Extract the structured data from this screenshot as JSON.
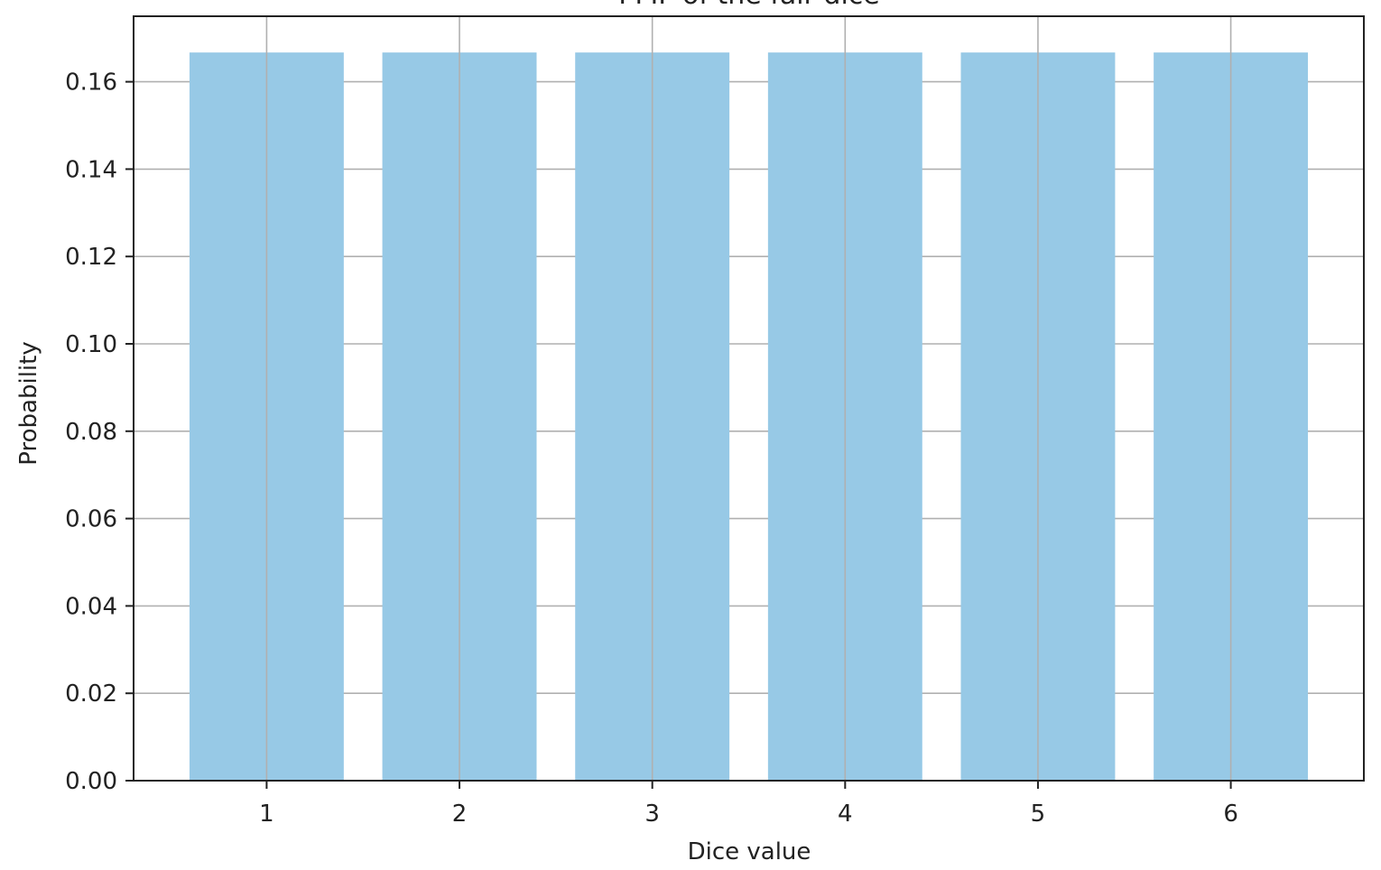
{
  "chart_data": {
    "type": "bar",
    "title": "PMF of the fair dice",
    "xlabel": "Dice value",
    "ylabel": "Probability",
    "categories": [
      "1",
      "2",
      "3",
      "4",
      "5",
      "6"
    ],
    "values": [
      0.1667,
      0.1667,
      0.1667,
      0.1667,
      0.1667,
      0.1667
    ],
    "ylim": [
      0,
      0.175
    ],
    "yticks": [
      0.0,
      0.02,
      0.04,
      0.06,
      0.08,
      0.1,
      0.12,
      0.14,
      0.16
    ],
    "ytick_labels": [
      "0.00",
      "0.02",
      "0.04",
      "0.06",
      "0.08",
      "0.10",
      "0.12",
      "0.14",
      "0.16"
    ],
    "xlim": [
      0.31,
      6.69
    ],
    "grid": true,
    "colors": {
      "bar": "#97c9e6",
      "grid": "#b0b0b0",
      "axis": "#222222"
    }
  }
}
